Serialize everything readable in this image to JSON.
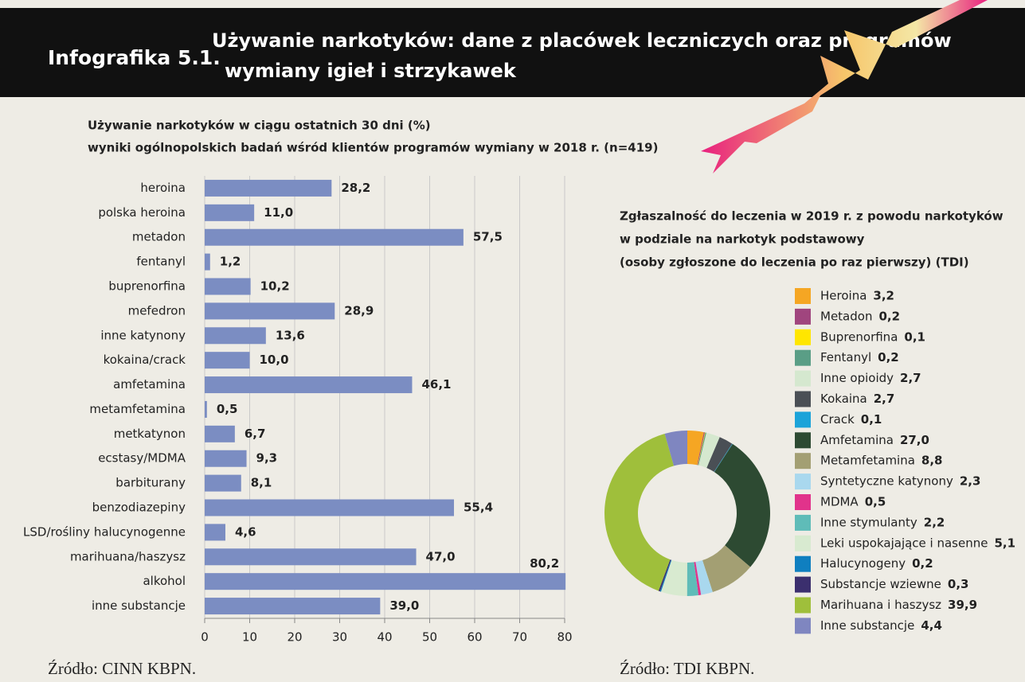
{
  "header": {
    "label": "Infografika 5.1.",
    "title": [
      "Używanie narkotyków: dane z placówek leczniczych oraz programów",
      "wymiany igieł i strzykawek"
    ]
  },
  "chart_data": [
    {
      "type": "hbar",
      "title": [
        "Używanie narkotyków w ciągu ostatnich 30 dni (%)",
        "wyniki ogólnopolskich badań wśród klientów programów wymiany w 2018 r. (n=419)"
      ],
      "categories": [
        "heroina",
        "polska heroina",
        "metadon",
        "fentanyl",
        "buprenorfina",
        "mefedron",
        "inne katynony",
        "kokaina/crack",
        "amfetamina",
        "metamfetamina",
        "metkatynon",
        "ecstasy/MDMA",
        "barbiturany",
        "benzodiazepiny",
        "LSD/rośliny halucynogenne",
        "marihuana/haszysz",
        "alkohol",
        "inne substancje"
      ],
      "values": [
        28.2,
        11.0,
        57.5,
        1.2,
        10.2,
        28.9,
        13.6,
        10.0,
        46.1,
        0.5,
        6.7,
        9.3,
        8.1,
        55.4,
        4.6,
        47.0,
        80.2,
        39.0
      ],
      "value_labels": [
        "28,2",
        "11,0",
        "57,5",
        "1,2",
        "10,2",
        "28,9",
        "13,6",
        "10,0",
        "46,1",
        "0,5",
        "6,7",
        "9,3",
        "8,1",
        "55,4",
        "4,6",
        "47,0",
        "80,2",
        "39,0"
      ],
      "color": "#7b8dc2",
      "xlim": [
        0,
        80
      ],
      "xticks": [
        0,
        10,
        20,
        30,
        40,
        50,
        60,
        70,
        80
      ],
      "grid": true,
      "source": "Źródło: CINN KBPN."
    },
    {
      "type": "donut",
      "title": [
        "Zgłaszalność do leczenia w 2019 r. z powodu narkotyków",
        "w podziale na narkotyk podstawowy",
        "(osoby zgłoszone do leczenia po raz pierwszy) (TDI)"
      ],
      "categories": [
        "Heroina",
        "Metadon",
        "Buprenorfina",
        "Fentanyl",
        "Inne opioidy",
        "Kokaina",
        "Crack",
        "Amfetamina",
        "Metamfetamina",
        "Syntetyczne katynony",
        "MDMA",
        "Inne stymulanty",
        "Leki uspokajające i nasenne",
        "Halucynogeny",
        "Substancje wziewne",
        "Marihuana i haszysz",
        "Inne substancje"
      ],
      "values": [
        3.2,
        0.2,
        0.1,
        0.2,
        2.7,
        2.7,
        0.1,
        27.0,
        8.8,
        2.3,
        0.5,
        2.2,
        5.1,
        0.2,
        0.3,
        39.9,
        4.4
      ],
      "value_labels": [
        "3,2",
        "0,2",
        "0,1",
        "0,2",
        "2,7",
        "2,7",
        "0,1",
        "27,0",
        "8,8",
        "2,3",
        "0,5",
        "2,2",
        "5,1",
        "0,2",
        "0,3",
        "39,9",
        "4,4"
      ],
      "colors": [
        "#f5a623",
        "#a0457e",
        "#ffe600",
        "#5a9e86",
        "#d5e8cf",
        "#4a4f55",
        "#1ba3d9",
        "#2d4a32",
        "#a39f73",
        "#a9d8ee",
        "#e1338b",
        "#5fbcb8",
        "#d8ead0",
        "#0f7fc0",
        "#3b2f6e",
        "#9fbf3b",
        "#7f86c0"
      ],
      "legend": "right",
      "source": "Źródło: TDI KBPN."
    }
  ]
}
